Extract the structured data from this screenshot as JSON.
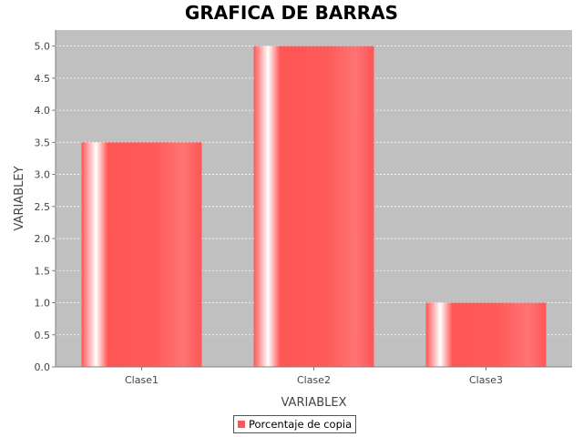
{
  "chart_data": {
    "type": "bar",
    "title": "GRAFICA DE BARRAS",
    "xlabel": "VARIABLEX",
    "ylabel": "VARIABLEY",
    "categories": [
      "Clase1",
      "Clase2",
      "Clase3"
    ],
    "series": [
      {
        "name": "Porcentaje de copia",
        "values": [
          3.5,
          5.0,
          1.0
        ]
      }
    ],
    "ylim": [
      0,
      5.25
    ],
    "yticks": [
      "0.0",
      "0.5",
      "1.0",
      "1.5",
      "2.0",
      "2.5",
      "3.0",
      "3.5",
      "4.0",
      "4.5",
      "5.0"
    ],
    "grid": true,
    "legend_position": "bottom",
    "colors": {
      "bar": "#ff5555",
      "plot_background": "#c0c0c0",
      "gridline": "#ffffff"
    }
  }
}
